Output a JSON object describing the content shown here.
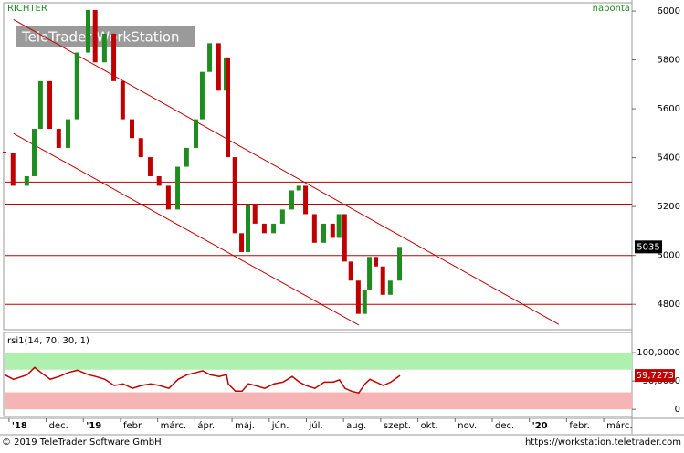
{
  "header": {
    "symbol": "RICHTER",
    "period": "naponta",
    "watermark": "TeleTrader WorkStation"
  },
  "chart_data": [
    {
      "type": "candlestick",
      "x": [
        -0.12,
        0.12,
        0.49,
        0.69,
        0.86,
        1.11,
        1.35,
        1.6,
        1.84,
        2.14,
        2.33,
        2.58,
        2.83,
        3.07,
        3.32,
        3.56,
        3.81,
        4.05,
        4.3,
        4.55,
        4.79,
        5.04,
        5.21,
        5.41,
        5.65,
        5.85,
        5.9,
        6.09,
        6.27,
        6.44,
        6.63,
        6.88,
        7.13,
        7.37,
        7.62,
        7.81,
        7.99,
        8.23,
        8.48,
        8.72,
        8.89,
        9.04,
        9.21,
        9.41,
        9.58,
        9.71,
        9.88,
        10.07,
        10.27,
        10.52
      ],
      "values": [
        5421,
        5285,
        5324,
        5518,
        5713,
        5518,
        5440,
        5557,
        5830,
        6004,
        5790,
        5907,
        5713,
        5557,
        5480,
        5402,
        5324,
        5285,
        5188,
        5363,
        5440,
        5557,
        5751,
        5868,
        5674,
        5810,
        5402,
        5091,
        5014,
        5208,
        5130,
        5091,
        5130,
        5188,
        5266,
        5285,
        5169,
        5052,
        5130,
        5072,
        5169,
        4975,
        4897,
        4761,
        4858,
        4994,
        4955,
        4839,
        4897,
        5035
      ],
      "up_color": "#1e8c1e",
      "down_color": "#c00000",
      "current": 5035,
      "xlim": [
        -0.12,
        16.76
      ],
      "ylim": [
        4700,
        6030
      ],
      "yticks": [
        4800,
        5000,
        5200,
        5400,
        5600,
        5800,
        6000
      ],
      "xticks": [
        {
          "value": 0,
          "label": "'18"
        },
        {
          "value": 1,
          "label": "dec."
        },
        {
          "value": 2,
          "label": "'19"
        },
        {
          "value": 3,
          "label": "febr."
        },
        {
          "value": 4,
          "label": "márc."
        },
        {
          "value": 5,
          "label": "ápr."
        },
        {
          "value": 6,
          "label": "máj."
        },
        {
          "value": 7,
          "label": "jún."
        },
        {
          "value": 8,
          "label": "júl."
        },
        {
          "value": 9,
          "label": "aug."
        },
        {
          "value": 10,
          "label": "szept."
        },
        {
          "value": 11,
          "label": "okt."
        },
        {
          "value": 12,
          "label": "nov."
        },
        {
          "value": 13,
          "label": "dec."
        },
        {
          "value": 14,
          "label": "'20"
        },
        {
          "value": 15,
          "label": "febr."
        },
        {
          "value": 16,
          "label": "márc."
        }
      ],
      "levels": [
        5300,
        5210,
        5000,
        4800
      ],
      "level_color": "#c00000",
      "trendlines": [
        {
          "x": [
            0.12,
            14.79
          ],
          "values": [
            5965,
            4718
          ]
        },
        {
          "x": [
            0.12,
            9.41
          ],
          "values": [
            5499,
            4715
          ]
        }
      ]
    },
    {
      "type": "line",
      "title": "rsi1(14, 70, 30, 1)",
      "x": [
        -0.12,
        0.12,
        0.49,
        0.69,
        0.86,
        1.11,
        1.35,
        1.6,
        1.84,
        2.14,
        2.33,
        2.58,
        2.83,
        3.07,
        3.32,
        3.56,
        3.81,
        4.05,
        4.3,
        4.55,
        4.79,
        5.04,
        5.21,
        5.41,
        5.65,
        5.85,
        5.9,
        6.09,
        6.27,
        6.44,
        6.63,
        6.88,
        7.13,
        7.37,
        7.62,
        7.81,
        7.99,
        8.23,
        8.48,
        8.72,
        8.89,
        9.04,
        9.21,
        9.41,
        9.58,
        9.71,
        9.88,
        10.07,
        10.27,
        10.52
      ],
      "values": [
        61,
        53,
        61,
        74,
        65,
        53,
        58,
        65,
        69,
        61,
        58,
        53,
        42,
        45,
        37,
        42,
        45,
        42,
        37,
        53,
        61,
        65,
        68,
        61,
        58,
        61,
        45,
        32,
        32,
        45,
        42,
        37,
        45,
        48,
        58,
        48,
        42,
        37,
        48,
        48,
        52,
        37,
        32,
        29,
        45,
        53,
        48,
        42,
        48,
        59.7273
      ],
      "color": "#c00000",
      "current": {
        "value": 59.7273,
        "label": "59,7273"
      },
      "bands": [
        {
          "from": 70,
          "to": 100,
          "color": "#aef0ae"
        },
        {
          "from": 0,
          "to": 30,
          "color": "#f7b4b4"
        }
      ],
      "xlim": [
        -0.12,
        16.76
      ],
      "ylim": [
        -11,
        134
      ],
      "yticks": [
        {
          "value": 100,
          "label": "100,0000"
        },
        {
          "value": 50,
          "label": "50,0000"
        },
        0
      ]
    }
  ],
  "footer": {
    "copyright": "© 2019 TeleTrader Software GmbH",
    "url": "https://workstation.teletrader.com"
  }
}
